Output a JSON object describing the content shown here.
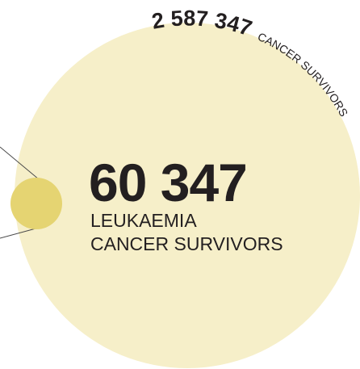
{
  "chart_data": {
    "type": "bubble",
    "series": [
      {
        "value_label": "2 587 347",
        "label": "CANCER SURVIVORS",
        "value": 2587347,
        "color": "#f6efc9"
      },
      {
        "value_label": "60 347",
        "label_line1": "LEUKAEMIA",
        "label_line2": "CANCER SURVIVORS",
        "value": 60347,
        "color": "#e5d472"
      }
    ]
  },
  "colors": {
    "text": "#231f20",
    "connector": "#4a4a4a"
  }
}
